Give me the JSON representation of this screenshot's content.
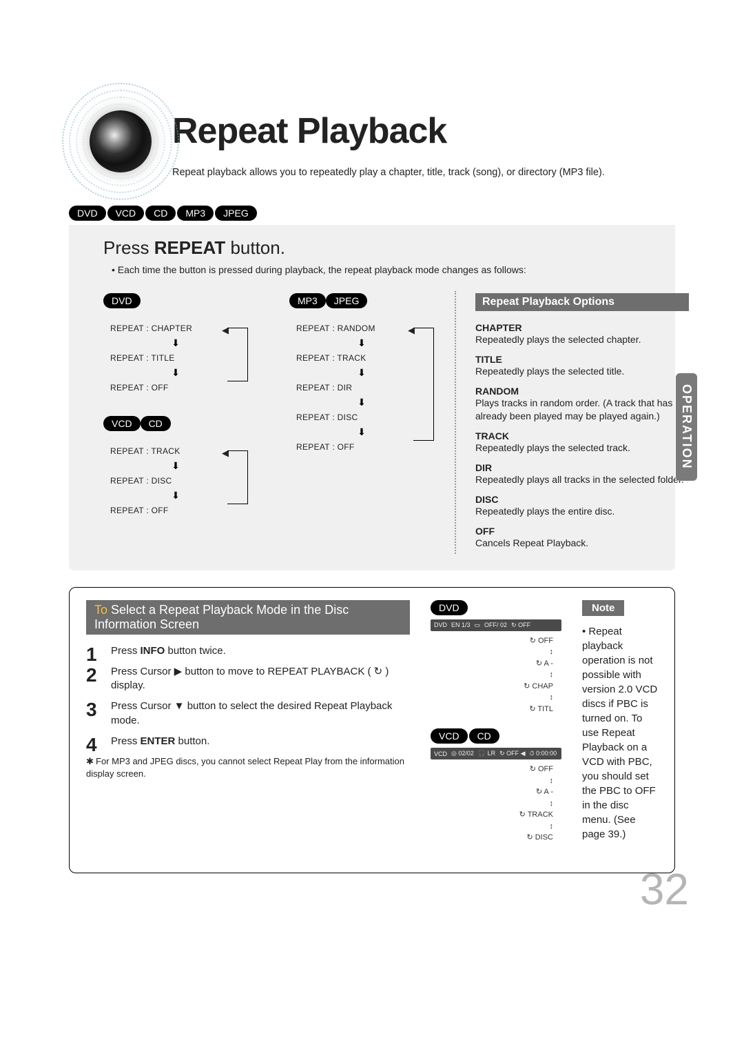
{
  "title": "Repeat Playback",
  "intro": "Repeat playback allows you to repeatedly play a chapter, title, track (song), or directory (MP3 file).",
  "formats": [
    "DVD",
    "VCD",
    "CD",
    "MP3",
    "JPEG"
  ],
  "pressHeading_pre": "Press ",
  "pressHeading_bold": "REPEAT",
  "pressHeading_post": " button.",
  "subline": "• Each time the button is pressed during playback, the repeat playback mode changes as follows:",
  "sideTab": "OPERATION",
  "flows": {
    "dvd": {
      "labels": [
        "DVD"
      ],
      "items": [
        "REPEAT : CHAPTER",
        "REPEAT : TITLE",
        "REPEAT : OFF"
      ]
    },
    "vcdcd": {
      "labels": [
        "VCD",
        "CD"
      ],
      "items": [
        "REPEAT : TRACK",
        "REPEAT : DISC",
        "REPEAT : OFF"
      ]
    },
    "mp3jpeg": {
      "labels": [
        "MP3",
        "JPEG"
      ],
      "items": [
        "REPEAT : RANDOM",
        "REPEAT : TRACK",
        "REPEAT : DIR",
        "REPEAT : DISC",
        "REPEAT : OFF"
      ]
    }
  },
  "optsTitle": "Repeat Playback Options",
  "options": [
    {
      "k": "CHAPTER",
      "v": "Repeatedly plays the selected chapter."
    },
    {
      "k": "TITLE",
      "v": "Repeatedly plays the selected title."
    },
    {
      "k": "RANDOM",
      "v": "Plays tracks in random order.\n(A track that has already been played may be played again.)"
    },
    {
      "k": "TRACK",
      "v": "Repeatedly plays the selected track."
    },
    {
      "k": "DIR",
      "v": "Repeatedly plays all tracks in the selected folder."
    },
    {
      "k": "DISC",
      "v": "Repeatedly plays the entire disc."
    },
    {
      "k": "OFF",
      "v": "Cancels Repeat Playback."
    }
  ],
  "lowerBar_accent": "To",
  "lowerBar_rest": " Select a Repeat Playback Mode in the Disc Information Screen",
  "steps": [
    "Press INFO button twice.",
    "Press Cursor ▶ button to move to REPEAT PLAYBACK ( ↻ ) display.",
    "Press Cursor ▼ button to select the desired Repeat Playback mode.",
    "Press ENTER button."
  ],
  "footnote": "For MP3 and JPEG discs, you cannot select Repeat Play from the information display screen.",
  "osd": {
    "dvdLabel": "DVD",
    "dvdStrip": [
      "DVD",
      "EN 1/3",
      "▭",
      "OFF/ 02",
      "↻ OFF"
    ],
    "dvdOpts": [
      "↻ OFF",
      "↕",
      "↻ A -",
      "↕",
      "↻ CHAP",
      "↕",
      "↻ TITL"
    ],
    "vcdLabels": [
      "VCD",
      "CD"
    ],
    "vcdStrip": [
      "VCD",
      "◎ 02/02",
      "🎧 LR",
      "↻ OFF ◀",
      "⏱ 0:00:00"
    ],
    "vcdOpts": [
      "↻ OFF",
      "↕",
      "↻ A -",
      "↕",
      "↻ TRACK",
      "↕",
      "↻ DISC"
    ]
  },
  "noteLabel": "Note",
  "noteText": "Repeat playback operation is not possible with version 2.0 VCD discs if PBC is turned on. To use Repeat Playback on a VCD with PBC, you should set the PBC to OFF in the disc menu. (See page 39.)",
  "pageNum": "32",
  "colors": {
    "greyPanel": "#f0f0f0",
    "barGrey": "#6e6e6e",
    "tabGrey": "#7a7a7a",
    "accent": "#f7bc40",
    "pageNum": "#b5b5b5"
  }
}
